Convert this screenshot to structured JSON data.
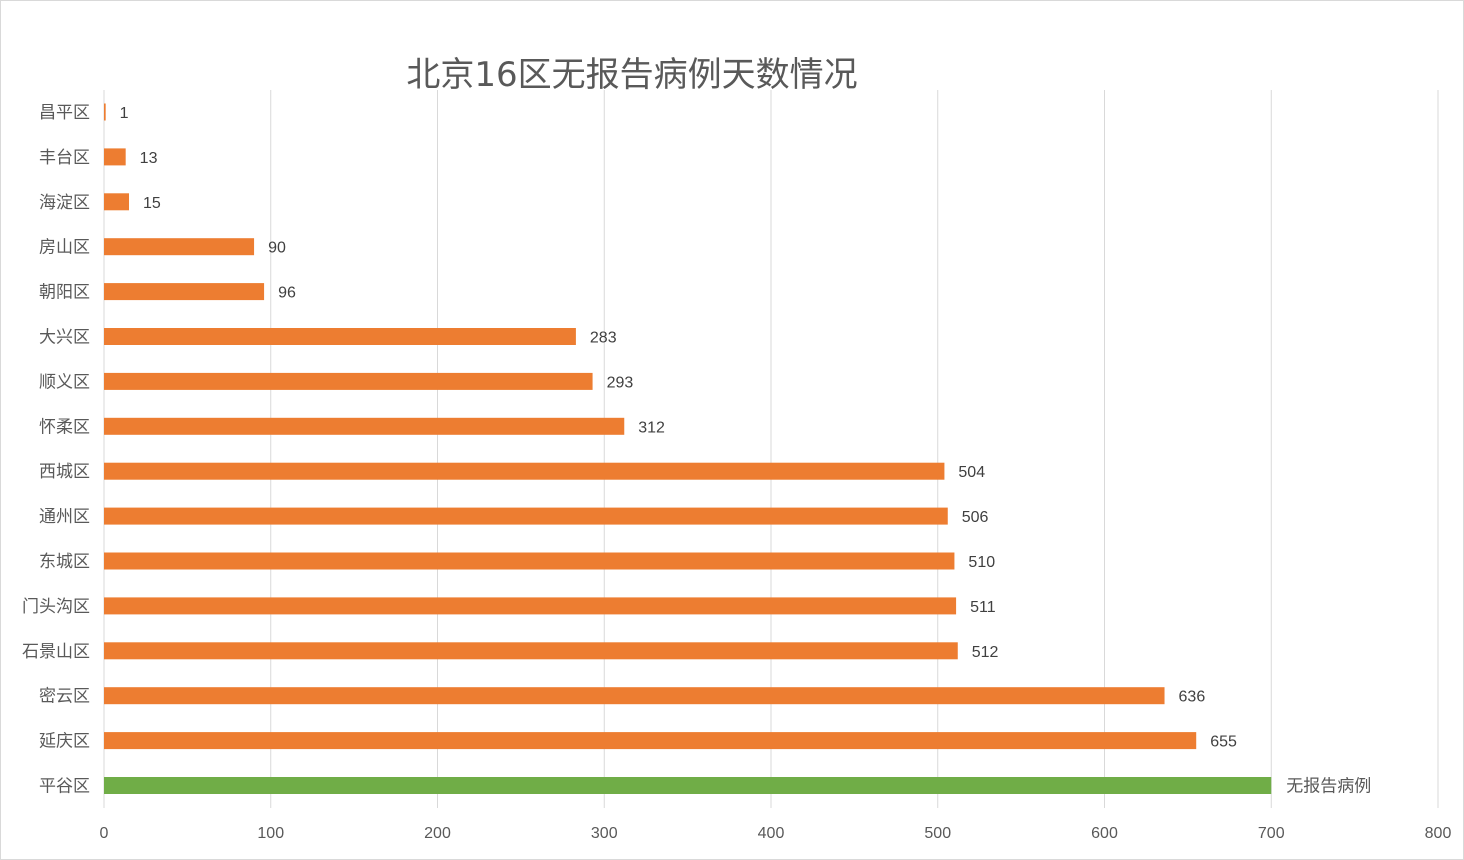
{
  "chart_data": {
    "type": "bar",
    "orientation": "horizontal",
    "title": "北京16区无报告病例天数情况",
    "xlabel": "",
    "ylabel": "",
    "xlim": [
      0,
      800
    ],
    "x_ticks": [
      "0",
      "100",
      "200",
      "300",
      "400",
      "500",
      "600",
      "700",
      "800"
    ],
    "grid": "vertical",
    "categories": [
      "昌平区",
      "丰台区",
      "海淀区",
      "房山区",
      "朝阳区",
      "大兴区",
      "顺义区",
      "怀柔区",
      "西城区",
      "通州区",
      "东城区",
      "门头沟区",
      "石景山区",
      "密云区",
      "延庆区",
      "平谷区"
    ],
    "values": [
      1,
      13,
      15,
      90,
      96,
      283,
      293,
      312,
      504,
      506,
      510,
      511,
      512,
      636,
      655,
      700
    ],
    "data_labels": [
      "1",
      "13",
      "15",
      "90",
      "96",
      "283",
      "293",
      "312",
      "504",
      "506",
      "510",
      "511",
      "512",
      "636",
      "655",
      "无报告病例"
    ],
    "bar_colors": [
      "#ed7d31",
      "#ed7d31",
      "#ed7d31",
      "#ed7d31",
      "#ed7d31",
      "#ed7d31",
      "#ed7d31",
      "#ed7d31",
      "#ed7d31",
      "#ed7d31",
      "#ed7d31",
      "#ed7d31",
      "#ed7d31",
      "#ed7d31",
      "#ed7d31",
      "#70ad47"
    ],
    "colors": {
      "bar": "#ed7d31",
      "highlight": "#70ad47",
      "gridline": "#d9d9d9",
      "text": "#595959"
    }
  }
}
